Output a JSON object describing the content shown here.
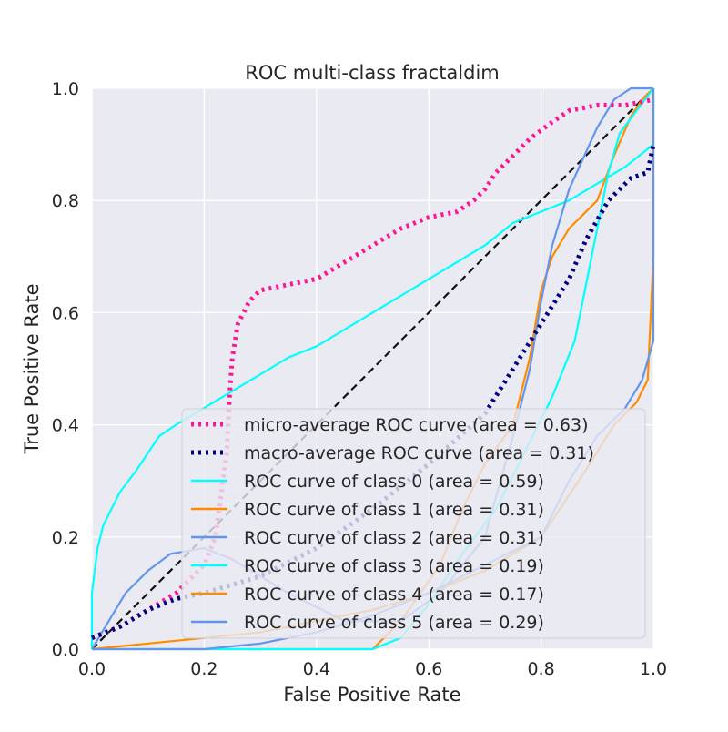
{
  "chart_data": {
    "type": "line",
    "title": "ROC multi-class fractaldim",
    "xlabel": "False Positive Rate",
    "ylabel": "True Positive Rate",
    "xlim": [
      0.0,
      1.0
    ],
    "ylim": [
      0.0,
      1.0
    ],
    "xticks": [
      "0.0",
      "0.2",
      "0.4",
      "0.6",
      "0.8",
      "1.0"
    ],
    "yticks": [
      "0.0",
      "0.2",
      "0.4",
      "0.6",
      "0.8",
      "1.0"
    ],
    "grid": true,
    "legend_position": "lower-right",
    "diagonal_reference": [
      [
        0,
        0
      ],
      [
        1,
        1
      ]
    ],
    "series": [
      {
        "name": "micro-average ROC curve (area = 0.63)",
        "color": "#ff1493",
        "style": "dotted",
        "points": [
          [
            0.0,
            0.02
          ],
          [
            0.05,
            0.04
          ],
          [
            0.1,
            0.07
          ],
          [
            0.15,
            0.1
          ],
          [
            0.2,
            0.15
          ],
          [
            0.22,
            0.2
          ],
          [
            0.24,
            0.35
          ],
          [
            0.245,
            0.45
          ],
          [
            0.25,
            0.52
          ],
          [
            0.26,
            0.58
          ],
          [
            0.28,
            0.62
          ],
          [
            0.3,
            0.64
          ],
          [
            0.35,
            0.65
          ],
          [
            0.4,
            0.66
          ],
          [
            0.45,
            0.69
          ],
          [
            0.5,
            0.72
          ],
          [
            0.55,
            0.75
          ],
          [
            0.6,
            0.77
          ],
          [
            0.65,
            0.78
          ],
          [
            0.68,
            0.8
          ],
          [
            0.7,
            0.82
          ],
          [
            0.72,
            0.85
          ],
          [
            0.75,
            0.88
          ],
          [
            0.78,
            0.91
          ],
          [
            0.82,
            0.94
          ],
          [
            0.85,
            0.96
          ],
          [
            0.9,
            0.97
          ],
          [
            0.95,
            0.97
          ],
          [
            1.0,
            0.98
          ]
        ]
      },
      {
        "name": "macro-average ROC curve (area = 0.31)",
        "color": "#000080",
        "style": "dotted",
        "points": [
          [
            0.0,
            0.02
          ],
          [
            0.05,
            0.04
          ],
          [
            0.1,
            0.07
          ],
          [
            0.15,
            0.09
          ],
          [
            0.2,
            0.1
          ],
          [
            0.3,
            0.13
          ],
          [
            0.4,
            0.18
          ],
          [
            0.5,
            0.25
          ],
          [
            0.6,
            0.33
          ],
          [
            0.7,
            0.42
          ],
          [
            0.75,
            0.5
          ],
          [
            0.8,
            0.58
          ],
          [
            0.85,
            0.66
          ],
          [
            0.88,
            0.73
          ],
          [
            0.92,
            0.8
          ],
          [
            0.96,
            0.84
          ],
          [
            0.99,
            0.85
          ],
          [
            1.0,
            0.9
          ]
        ]
      },
      {
        "name": "ROC curve of class 0 (area = 0.59)",
        "color": "#00ffff",
        "style": "solid",
        "points": [
          [
            0.0,
            0.0
          ],
          [
            0.0,
            0.1
          ],
          [
            0.01,
            0.18
          ],
          [
            0.02,
            0.22
          ],
          [
            0.05,
            0.28
          ],
          [
            0.08,
            0.32
          ],
          [
            0.1,
            0.35
          ],
          [
            0.12,
            0.38
          ],
          [
            0.15,
            0.4
          ],
          [
            0.2,
            0.43
          ],
          [
            0.25,
            0.46
          ],
          [
            0.3,
            0.49
          ],
          [
            0.35,
            0.52
          ],
          [
            0.4,
            0.54
          ],
          [
            0.45,
            0.57
          ],
          [
            0.5,
            0.6
          ],
          [
            0.55,
            0.63
          ],
          [
            0.6,
            0.66
          ],
          [
            0.65,
            0.69
          ],
          [
            0.7,
            0.72
          ],
          [
            0.75,
            0.76
          ],
          [
            0.8,
            0.78
          ],
          [
            0.85,
            0.8
          ],
          [
            0.9,
            0.83
          ],
          [
            0.95,
            0.86
          ],
          [
            1.0,
            0.9
          ],
          [
            1.0,
            1.0
          ]
        ]
      },
      {
        "name": "ROC curve of class 1 (area = 0.31)",
        "color": "#ff8c00",
        "style": "solid",
        "points": [
          [
            0.0,
            0.0
          ],
          [
            0.3,
            0.0
          ],
          [
            0.5,
            0.0
          ],
          [
            0.55,
            0.05
          ],
          [
            0.62,
            0.15
          ],
          [
            0.66,
            0.25
          ],
          [
            0.7,
            0.33
          ],
          [
            0.75,
            0.4
          ],
          [
            0.78,
            0.52
          ],
          [
            0.8,
            0.64
          ],
          [
            0.82,
            0.7
          ],
          [
            0.85,
            0.75
          ],
          [
            0.9,
            0.8
          ],
          [
            0.93,
            0.88
          ],
          [
            0.96,
            0.95
          ],
          [
            0.98,
            0.98
          ],
          [
            1.0,
            1.0
          ]
        ]
      },
      {
        "name": "ROC curve of class 2 (area = 0.31)",
        "color": "#6495ed",
        "style": "solid",
        "points": [
          [
            0.0,
            0.0
          ],
          [
            0.03,
            0.05
          ],
          [
            0.06,
            0.1
          ],
          [
            0.1,
            0.14
          ],
          [
            0.14,
            0.17
          ],
          [
            0.2,
            0.18
          ],
          [
            0.25,
            0.16
          ],
          [
            0.35,
            0.1
          ],
          [
            0.45,
            0.05
          ],
          [
            0.55,
            0.05
          ],
          [
            0.62,
            0.1
          ],
          [
            0.7,
            0.2
          ],
          [
            0.75,
            0.38
          ],
          [
            0.78,
            0.5
          ],
          [
            0.8,
            0.62
          ],
          [
            0.82,
            0.72
          ],
          [
            0.85,
            0.82
          ],
          [
            0.9,
            0.93
          ],
          [
            0.93,
            0.98
          ],
          [
            0.96,
            1.0
          ],
          [
            1.0,
            1.0
          ]
        ]
      },
      {
        "name": "ROC curve of class 3 (area = 0.19)",
        "color": "#00ffff",
        "style": "solid",
        "points": [
          [
            0.0,
            0.0
          ],
          [
            0.5,
            0.0
          ],
          [
            0.55,
            0.02
          ],
          [
            0.6,
            0.08
          ],
          [
            0.66,
            0.17
          ],
          [
            0.72,
            0.25
          ],
          [
            0.77,
            0.35
          ],
          [
            0.82,
            0.45
          ],
          [
            0.86,
            0.55
          ],
          [
            0.88,
            0.65
          ],
          [
            0.9,
            0.75
          ],
          [
            0.92,
            0.85
          ],
          [
            0.94,
            0.92
          ],
          [
            0.97,
            0.96
          ],
          [
            1.0,
            1.0
          ]
        ]
      },
      {
        "name": "ROC curve of class 4 (area = 0.17)",
        "color": "#ff8c00",
        "style": "solid",
        "points": [
          [
            0.0,
            0.0
          ],
          [
            0.1,
            0.01
          ],
          [
            0.2,
            0.02
          ],
          [
            0.3,
            0.03
          ],
          [
            0.4,
            0.05
          ],
          [
            0.5,
            0.07
          ],
          [
            0.6,
            0.1
          ],
          [
            0.7,
            0.14
          ],
          [
            0.8,
            0.2
          ],
          [
            0.88,
            0.32
          ],
          [
            0.93,
            0.4
          ],
          [
            0.97,
            0.44
          ],
          [
            0.99,
            0.48
          ],
          [
            1.0,
            0.7
          ],
          [
            1.0,
            1.0
          ]
        ]
      },
      {
        "name": "ROC curve of class 5 (area = 0.29)",
        "color": "#6495ed",
        "style": "solid",
        "points": [
          [
            0.0,
            0.0
          ],
          [
            0.2,
            0.0
          ],
          [
            0.3,
            0.01
          ],
          [
            0.4,
            0.03
          ],
          [
            0.5,
            0.06
          ],
          [
            0.6,
            0.1
          ],
          [
            0.7,
            0.15
          ],
          [
            0.8,
            0.2
          ],
          [
            0.85,
            0.3
          ],
          [
            0.9,
            0.38
          ],
          [
            0.95,
            0.43
          ],
          [
            0.98,
            0.48
          ],
          [
            1.0,
            0.55
          ],
          [
            1.0,
            1.0
          ]
        ]
      }
    ]
  }
}
